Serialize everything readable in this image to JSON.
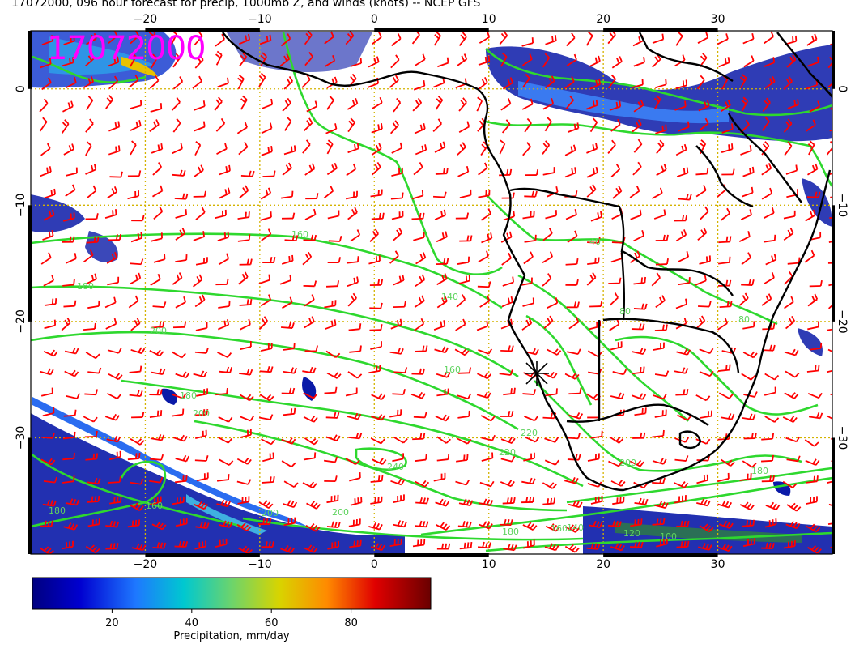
{
  "title": "17072000, 096 hour forecast for precip, 1000mb Z, and winds (knots) -- NCEP GFS",
  "stamp": "17072000",
  "map": {
    "lon_range": [
      -30,
      40
    ],
    "lat_range": [
      -40,
      5
    ],
    "lon_ticks": [
      -20,
      -10,
      0,
      10,
      20,
      30
    ],
    "lon_tick_labels": [
      "−20",
      "−10",
      "0",
      "10",
      "20",
      "30"
    ],
    "lat_ticks": [
      0,
      -10,
      -20,
      -30
    ],
    "lat_tick_labels": [
      "0",
      "−10",
      "−20",
      "−30"
    ],
    "contour_labels": [
      "160",
      "180",
      "200",
      "140",
      "160",
      "180",
      "200",
      "220",
      "240",
      "220",
      "200",
      "180",
      "160",
      "200",
      "180",
      "160",
      "140",
      "120",
      "100",
      "80",
      "40",
      "80",
      "200",
      "180"
    ],
    "colors": {
      "barb": "#ff0000",
      "contour": "#2ed82e",
      "coast": "#000000",
      "grid": "#d4b300",
      "stamp": "#ff00ff"
    },
    "marker": "cross"
  },
  "colorbar": {
    "ticks": [
      20,
      40,
      60,
      80
    ],
    "tick_labels": [
      "20",
      "40",
      "60",
      "80"
    ],
    "range": [
      0,
      100
    ],
    "label": "Precipitation, mm/day"
  }
}
